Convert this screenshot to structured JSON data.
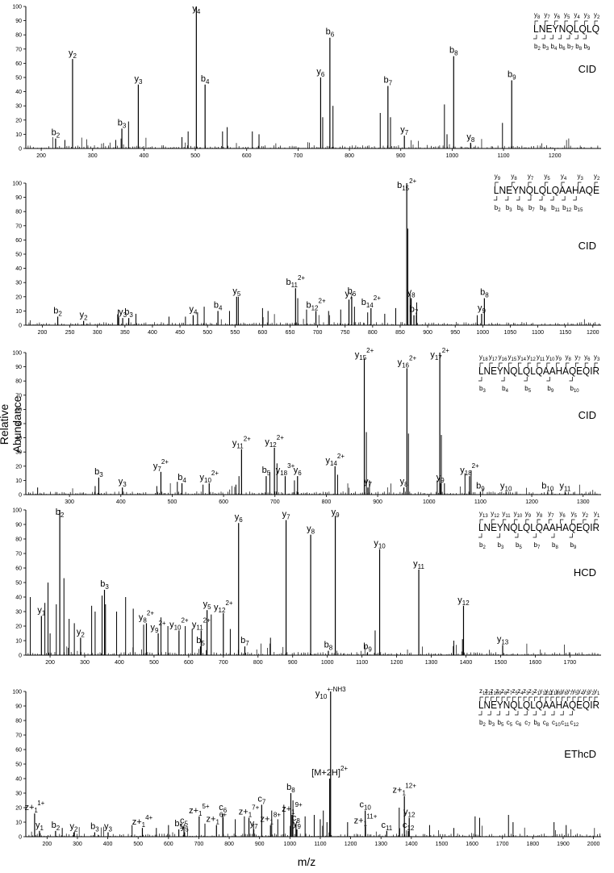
{
  "figure": {
    "ylabel": "Relative Abundance",
    "xlabel": "m/z"
  },
  "chart_data": [
    {
      "type": "bar",
      "method": "CID",
      "peptide": "LNEYNQLQLQ",
      "ylim": [
        0,
        100
      ],
      "xlim": [
        170,
        1290
      ],
      "xticks": [
        200,
        300,
        400,
        500,
        600,
        700,
        800,
        900,
        1000,
        1100,
        1200
      ],
      "yticks": [
        0,
        10,
        20,
        30,
        40,
        50,
        60,
        70,
        80,
        90,
        100
      ],
      "ion_map_top": [
        "y8",
        "y7",
        "y6",
        "y5",
        "y4",
        "y3",
        "y2"
      ],
      "ion_map_bottom": [
        "b2",
        "b3",
        "b4",
        "b6",
        "b7",
        "b8",
        "b9"
      ],
      "annotated_peaks": [
        {
          "label": "b2",
          "mz": 228,
          "y": 7
        },
        {
          "label": "y2",
          "mz": 261,
          "y": 63
        },
        {
          "label": "b3",
          "mz": 357,
          "y": 14
        },
        {
          "label": "y3",
          "mz": 389,
          "y": 45
        },
        {
          "label": "y4",
          "mz": 502,
          "y": 100
        },
        {
          "label": "b4",
          "mz": 519,
          "y": 45
        },
        {
          "label": "y6",
          "mz": 744,
          "y": 50
        },
        {
          "label": "b6",
          "mz": 762,
          "y": 78
        },
        {
          "label": "b7",
          "mz": 875,
          "y": 44
        },
        {
          "label": "y7",
          "mz": 907,
          "y": 9
        },
        {
          "label": "b8",
          "mz": 1003,
          "y": 65
        },
        {
          "label": "y8",
          "mz": 1036,
          "y": 4
        },
        {
          "label": "b9",
          "mz": 1116,
          "y": 48
        }
      ],
      "other_peaks": [
        [
          246,
          6
        ],
        [
          345,
          6
        ],
        [
          370,
          19
        ],
        [
          474,
          8
        ],
        [
          486,
          12
        ],
        [
          553,
          12
        ],
        [
          562,
          15
        ],
        [
          611,
          12
        ],
        [
          624,
          10
        ],
        [
          748,
          22
        ],
        [
          768,
          30
        ],
        [
          860,
          25
        ],
        [
          880,
          22
        ],
        [
          985,
          31
        ],
        [
          990,
          10
        ],
        [
          1098,
          18
        ]
      ]
    },
    {
      "type": "bar",
      "method": "CID",
      "peptide": "LNEYNQLQLQAAHAQE",
      "ylim": [
        0,
        100
      ],
      "xlim": [
        170,
        1215
      ],
      "xticks": [
        200,
        250,
        300,
        350,
        400,
        450,
        500,
        550,
        600,
        650,
        700,
        750,
        800,
        850,
        900,
        950,
        1000,
        1050,
        1100,
        1150,
        1200
      ],
      "yticks": [
        0,
        10,
        20,
        30,
        40,
        50,
        60,
        70,
        80,
        90,
        100
      ],
      "ion_map_top": [
        "y9",
        "y8",
        "y7",
        "y5",
        "y4",
        "y3",
        "y2"
      ],
      "ion_map_bottom": [
        "b2",
        "b3",
        "b6",
        "b7",
        "b8",
        "b11",
        "b12",
        "b15"
      ],
      "annotated_peaks": [
        {
          "label": "b2",
          "mz": 228,
          "y": 6
        },
        {
          "label": "y2",
          "mz": 275,
          "y": 3
        },
        {
          "label": "y3",
          "mz": 346,
          "y": 5
        },
        {
          "label": "b3",
          "mz": 357,
          "y": 5
        },
        {
          "label": "y4",
          "mz": 474,
          "y": 7
        },
        {
          "label": "b4",
          "mz": 519,
          "y": 10
        },
        {
          "label": "y5",
          "mz": 553,
          "y": 20
        },
        {
          "label": "b11 2+",
          "mz": 660,
          "y": 26
        },
        {
          "label": "b12 2+",
          "mz": 697,
          "y": 10
        },
        {
          "label": "y7",
          "mz": 757,
          "y": 18
        },
        {
          "label": "b6",
          "mz": 762,
          "y": 20
        },
        {
          "label": "b14 2+",
          "mz": 797,
          "y": 12
        },
        {
          "label": "b15 2+",
          "mz": 862,
          "y": 100
        },
        {
          "label": "y8",
          "mz": 870,
          "y": 19
        },
        {
          "label": "b7",
          "mz": 875,
          "y": 7
        },
        {
          "label": "y9",
          "mz": 998,
          "y": 8
        },
        {
          "label": "b8",
          "mz": 1003,
          "y": 19
        }
      ],
      "other_peaks": [
        [
          338,
          11
        ],
        [
          370,
          8
        ],
        [
          430,
          6
        ],
        [
          460,
          6
        ],
        [
          482,
          9
        ],
        [
          494,
          13
        ],
        [
          540,
          10
        ],
        [
          556,
          20
        ],
        [
          600,
          12
        ],
        [
          610,
          10
        ],
        [
          664,
          19
        ],
        [
          680,
          11
        ],
        [
          720,
          10
        ],
        [
          742,
          11
        ],
        [
          767,
          13
        ],
        [
          791,
          9
        ],
        [
          822,
          8
        ],
        [
          842,
          12
        ],
        [
          864,
          68
        ],
        [
          868,
          22
        ],
        [
          880,
          16
        ],
        [
          990,
          7
        ]
      ]
    },
    {
      "type": "bar",
      "method": "CID",
      "peptide": "LNEYNQLQLQAAHAQEQIR",
      "ylim": [
        0,
        100
      ],
      "xlim": [
        215,
        1335
      ],
      "xticks": [
        300,
        400,
        500,
        600,
        700,
        800,
        900,
        1000,
        1100,
        1200,
        1300
      ],
      "yticks": [
        0,
        10,
        20,
        30,
        40,
        50,
        60,
        70,
        80,
        90,
        100
      ],
      "ion_map_top": [
        "y18",
        "y17",
        "y16",
        "y15",
        "y14",
        "y12",
        "y11",
        "y10",
        "y9",
        "y8",
        "y7",
        "y6",
        "y3"
      ],
      "ion_map_bottom": [
        "b3",
        "b4",
        "b5",
        "b9",
        "b10"
      ],
      "annotated_peaks": [
        {
          "label": "b3",
          "mz": 357,
          "y": 12
        },
        {
          "label": "y3",
          "mz": 403,
          "y": 5
        },
        {
          "label": "y7 2+",
          "mz": 478,
          "y": 16
        },
        {
          "label": "b4",
          "mz": 519,
          "y": 8
        },
        {
          "label": "y10 2+",
          "mz": 572,
          "y": 8
        },
        {
          "label": "y11 2+",
          "mz": 635,
          "y": 32
        },
        {
          "label": "b5",
          "mz": 683,
          "y": 13
        },
        {
          "label": "y12 2+",
          "mz": 699,
          "y": 33
        },
        {
          "label": "y18 3+",
          "mz": 720,
          "y": 13
        },
        {
          "label": "y6",
          "mz": 744,
          "y": 13
        },
        {
          "label": "y14 2+",
          "mz": 817,
          "y": 20
        },
        {
          "label": "y15 2+",
          "mz": 874,
          "y": 96
        },
        {
          "label": "y7",
          "mz": 881,
          "y": 5
        },
        {
          "label": "y8",
          "mz": 951,
          "y": 5
        },
        {
          "label": "y16 2+",
          "mz": 957,
          "y": 89
        },
        {
          "label": "y17 2+",
          "mz": 1021,
          "y": 100
        },
        {
          "label": "y9",
          "mz": 1022,
          "y": 8
        },
        {
          "label": "y18 2+",
          "mz": 1079,
          "y": 13
        },
        {
          "label": "b9",
          "mz": 1100,
          "y": 2
        },
        {
          "label": "y10",
          "mz": 1150,
          "y": 2
        },
        {
          "label": "b10",
          "mz": 1231,
          "y": 2
        },
        {
          "label": "y11",
          "mz": 1265,
          "y": 2
        }
      ],
      "other_peaks": [
        [
          238,
          5
        ],
        [
          350,
          6
        ],
        [
          470,
          6
        ],
        [
          510,
          9
        ],
        [
          560,
          7
        ],
        [
          624,
          7
        ],
        [
          630,
          13
        ],
        [
          690,
          16
        ],
        [
          704,
          22
        ],
        [
          738,
          10
        ],
        [
          822,
          14
        ],
        [
          878,
          44
        ],
        [
          884,
          10
        ],
        [
          960,
          43
        ],
        [
          1016,
          10
        ],
        [
          1024,
          42
        ],
        [
          1070,
          15
        ],
        [
          1082,
          17
        ],
        [
          1030,
          8
        ]
      ]
    },
    {
      "type": "bar",
      "method": "HCD",
      "peptide": "LNEYNQLQLQAAHAQEQIR",
      "ylim": [
        0,
        100
      ],
      "xlim": [
        130,
        1790
      ],
      "xticks": [
        200,
        300,
        400,
        500,
        600,
        700,
        800,
        900,
        1000,
        1100,
        1200,
        1300,
        1400,
        1500,
        1600,
        1700
      ],
      "yticks": [
        0,
        10,
        20,
        30,
        40,
        50,
        60,
        70,
        80,
        90,
        100
      ],
      "ion_map_top": [
        "y13",
        "y12",
        "y11",
        "y10",
        "y9",
        "y8",
        "y7",
        "y6",
        "y5",
        "y2",
        "y1"
      ],
      "ion_map_bottom": [
        "b2",
        "b3",
        "b5",
        "b7",
        "b8",
        "b9"
      ],
      "annotated_peaks": [
        {
          "label": "y1",
          "mz": 175,
          "y": 27
        },
        {
          "label": "b2",
          "mz": 228,
          "y": 100
        },
        {
          "label": "y2",
          "mz": 288,
          "y": 12
        },
        {
          "label": "b3",
          "mz": 357,
          "y": 45
        },
        {
          "label": "y8 2+",
          "mz": 478,
          "y": 22
        },
        {
          "label": "y9 2+",
          "mz": 512,
          "y": 15
        },
        {
          "label": "y10 2+",
          "mz": 572,
          "y": 17
        },
        {
          "label": "y11 2+",
          "mz": 636,
          "y": 17
        },
        {
          "label": "b5",
          "mz": 634,
          "y": 6
        },
        {
          "label": "y5",
          "mz": 653,
          "y": 31
        },
        {
          "label": "y12 2+",
          "mz": 700,
          "y": 29
        },
        {
          "label": "y6",
          "mz": 744,
          "y": 91
        },
        {
          "label": "b7",
          "mz": 762,
          "y": 6
        },
        {
          "label": "y7",
          "mz": 881,
          "y": 93
        },
        {
          "label": "y8",
          "mz": 952,
          "y": 83
        },
        {
          "label": "b8",
          "mz": 1003,
          "y": 3
        },
        {
          "label": "y9",
          "mz": 1023,
          "y": 96
        },
        {
          "label": "b9",
          "mz": 1116,
          "y": 2
        },
        {
          "label": "y10",
          "mz": 1151,
          "y": 73
        },
        {
          "label": "y11",
          "mz": 1264,
          "y": 59
        },
        {
          "label": "y12",
          "mz": 1393,
          "y": 34
        },
        {
          "label": "y13",
          "mz": 1506,
          "y": 7
        }
      ],
      "other_peaks": [
        [
          143,
          40
        ],
        [
          185,
          36
        ],
        [
          194,
          50
        ],
        [
          200,
          15
        ],
        [
          218,
          35
        ],
        [
          240,
          53
        ],
        [
          255,
          25
        ],
        [
          270,
          22
        ],
        [
          320,
          34
        ],
        [
          330,
          30
        ],
        [
          350,
          41
        ],
        [
          360,
          35
        ],
        [
          392,
          30
        ],
        [
          418,
          40
        ],
        [
          440,
          32
        ],
        [
          470,
          21
        ],
        [
          520,
          26
        ],
        [
          540,
          20
        ],
        [
          590,
          20
        ],
        [
          610,
          18
        ],
        [
          665,
          28
        ],
        [
          720,
          18
        ],
        [
          836,
          12
        ],
        [
          1138,
          17
        ],
        [
          1365,
          10
        ],
        [
          1390,
          11
        ]
      ]
    },
    {
      "type": "bar",
      "method": "EThcD",
      "peptide": "LNEYNQLQLQAAHAQEQIR",
      "ylim": [
        0,
        100
      ],
      "xlim": [
        130,
        2025
      ],
      "xticks": [
        200,
        300,
        400,
        500,
        600,
        700,
        800,
        900,
        1000,
        1100,
        1200,
        1300,
        1400,
        1500,
        1600,
        1700,
        1800,
        1900,
        2000
      ],
      "yticks": [
        0,
        10,
        20,
        30,
        40,
        50,
        60,
        70,
        80,
        90,
        100
      ],
      "ion_map_top": [
        "z12",
        "z11",
        "z10",
        "z9",
        "z8",
        "z7",
        "z5",
        "z4",
        "z3",
        "z2",
        "z1",
        "y12",
        "y11",
        "y10",
        "y9",
        "y8",
        "y7",
        "y5",
        "y4",
        "y3",
        "y2",
        "y1"
      ],
      "ion_map_bottom": [
        "b2",
        "b3",
        "b5",
        "c5",
        "c6",
        "c7",
        "b8",
        "c8",
        "c10",
        "c11",
        "c12"
      ],
      "annotated_peaks": [
        {
          "label": "z+1 1 +",
          "mz": 159,
          "y": 16
        },
        {
          "label": "y1",
          "mz": 175,
          "y": 4
        },
        {
          "label": "b2",
          "mz": 228,
          "y": 4
        },
        {
          "label": "y2",
          "mz": 288,
          "y": 3
        },
        {
          "label": "b3",
          "mz": 357,
          "y": 3
        },
        {
          "label": "y3",
          "mz": 401,
          "y": 3
        },
        {
          "label": "z+1 4 +",
          "mz": 514,
          "y": 6
        },
        {
          "label": "b5",
          "mz": 634,
          "y": 5
        },
        {
          "label": "c5",
          "mz": 651,
          "y": 7
        },
        {
          "label": "y5",
          "mz": 653,
          "y": 3
        },
        {
          "label": "z+1 5 +",
          "mz": 701,
          "y": 14
        },
        {
          "label": "z+1 6 +",
          "mz": 758,
          "y": 8
        },
        {
          "label": "c6",
          "mz": 779,
          "y": 16
        },
        {
          "label": "y7",
          "mz": 881,
          "y": 5
        },
        {
          "label": "z+1 7 +",
          "mz": 865,
          "y": 13
        },
        {
          "label": "c7",
          "mz": 907,
          "y": 22
        },
        {
          "label": "z+1 8 +",
          "mz": 936,
          "y": 8
        },
        {
          "label": "b8",
          "mz": 1003,
          "y": 30
        },
        {
          "label": "z+1 9 +",
          "mz": 1007,
          "y": 15
        },
        {
          "label": "c8",
          "mz": 1020,
          "y": 9
        },
        {
          "label": "y9",
          "mz": 1023,
          "y": 5
        },
        {
          "label": "[M+2H] 2+",
          "mz": 1131,
          "y": 40
        },
        {
          "label": "y10 + -NH3",
          "mz": 1134,
          "y": 100
        },
        {
          "label": "c10",
          "mz": 1248,
          "y": 18
        },
        {
          "label": "z+1 11 +",
          "mz": 1249,
          "y": 7
        },
        {
          "label": "c11",
          "mz": 1319,
          "y": 4
        },
        {
          "label": "z+1 12 +",
          "mz": 1377,
          "y": 28
        },
        {
          "label": "y12",
          "mz": 1393,
          "y": 13
        },
        {
          "label": "c12",
          "mz": 1390,
          "y": 4
        }
      ],
      "other_peaks": [
        [
          250,
          6
        ],
        [
          480,
          8
        ],
        [
          560,
          6
        ],
        [
          600,
          8
        ],
        [
          720,
          9
        ],
        [
          780,
          13
        ],
        [
          820,
          12
        ],
        [
          850,
          14
        ],
        [
          880,
          9
        ],
        [
          940,
          18
        ],
        [
          960,
          12
        ],
        [
          980,
          22
        ],
        [
          1010,
          25
        ],
        [
          1050,
          14
        ],
        [
          1080,
          15
        ],
        [
          1100,
          12
        ],
        [
          1110,
          18
        ],
        [
          1122,
          10
        ],
        [
          1190,
          10
        ],
        [
          1360,
          20
        ],
        [
          1460,
          8
        ],
        [
          1540,
          6
        ],
        [
          1610,
          14
        ],
        [
          1625,
          13
        ],
        [
          1720,
          15
        ],
        [
          1735,
          10
        ],
        [
          1870,
          10
        ],
        [
          1910,
          8
        ]
      ]
    }
  ]
}
